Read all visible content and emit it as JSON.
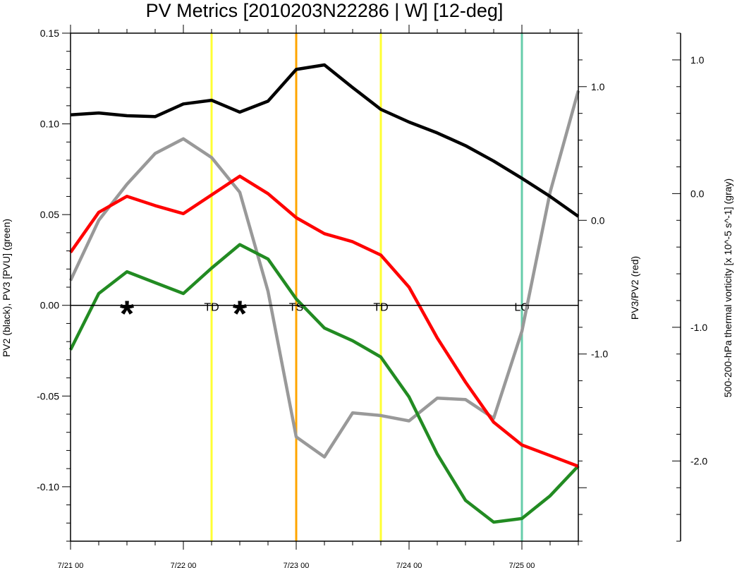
{
  "chart_data": {
    "type": "line",
    "title": "PV Metrics [2010203N22286 | W] [12-deg]",
    "x": [
      "7/21 00",
      "7/21 06",
      "7/21 12",
      "7/21 18",
      "7/22 00",
      "7/22 06",
      "7/22 12",
      "7/22 18",
      "7/23 00",
      "7/23 06",
      "7/23 12",
      "7/23 18",
      "7/24 00",
      "7/24 06",
      "7/24 12",
      "7/24 18",
      "7/25 00",
      "7/25 06",
      "7/25 12"
    ],
    "x_tick_labels": [
      "7/21 00",
      "7/22 00",
      "7/23 00",
      "7/24 00",
      "7/25 00"
    ],
    "xlim": [
      0,
      18
    ],
    "left_axis": {
      "label": "PV2 (black), PV3 [PVU] (green)",
      "ylim": [
        -0.13,
        0.15
      ],
      "ticks": [
        0.15,
        0.1,
        0.05,
        0.0,
        -0.05,
        -0.1
      ],
      "tick_labels": [
        "0.15",
        "0.10",
        "0.05",
        "0.00",
        "-0.05",
        "-0.10"
      ]
    },
    "right_axis_1": {
      "label": "PV3/PV2 (red)",
      "ylim": [
        -2.4,
        1.4
      ],
      "ticks": [
        1.0,
        0.0,
        -1.0
      ],
      "tick_labels": [
        "1.0",
        "0.0",
        "-1.0"
      ]
    },
    "right_axis_2": {
      "label": "500-200-hPa thermal vorticity [x 10^-5 s^-1] (gray)",
      "ylim": [
        -2.6,
        1.2
      ],
      "ticks": [
        1.0,
        0.0,
        -1.0,
        -2.0
      ],
      "tick_labels": [
        "1.0",
        "0.0",
        "-1.0",
        "-2.0"
      ]
    },
    "series": [
      {
        "name": "PV2",
        "axis": "left",
        "color": "#000000",
        "values": [
          0.105,
          0.106,
          0.1045,
          0.104,
          0.111,
          0.113,
          0.1065,
          0.1125,
          0.13,
          0.1325,
          0.12,
          0.108,
          0.101,
          0.095,
          0.088,
          0.0795,
          0.07,
          0.06,
          0.049
        ]
      },
      {
        "name": "PV3",
        "axis": "left",
        "color": "#228b22",
        "values": [
          -0.0245,
          0.0065,
          0.0185,
          0.0125,
          0.0065,
          0.0205,
          0.0335,
          0.0255,
          0.0035,
          -0.0125,
          -0.0195,
          -0.0285,
          -0.0505,
          -0.082,
          -0.1075,
          -0.1195,
          -0.1175,
          -0.105,
          -0.0885
        ]
      },
      {
        "name": "PV3/PV2",
        "axis": "right1",
        "color": "#ff0000",
        "values": [
          -0.24,
          0.06,
          0.18,
          0.11,
          0.05,
          0.19,
          0.33,
          0.2,
          0.02,
          -0.1,
          -0.16,
          -0.26,
          -0.5,
          -0.88,
          -1.21,
          -1.51,
          -1.68,
          -1.76,
          -1.84
        ]
      },
      {
        "name": "thermal vorticity",
        "axis": "right2",
        "color": "#999999",
        "values": [
          -0.65,
          -0.2,
          0.07,
          0.3,
          0.41,
          0.27,
          0.01,
          -0.73,
          -1.82,
          -1.97,
          -1.64,
          -1.66,
          -1.7,
          -1.53,
          -1.54,
          -1.68,
          -1.03,
          0.01,
          0.77
        ]
      }
    ],
    "stage_lines": [
      {
        "x": 5,
        "label": "TD",
        "color": "#ffff33"
      },
      {
        "x": 8,
        "label": "TS",
        "color": "#ffa500"
      },
      {
        "x": 11,
        "label": "TD",
        "color": "#ffff33"
      },
      {
        "x": 16,
        "label": "LO",
        "color": "#66cdaa"
      }
    ],
    "markers": [
      {
        "x": 2,
        "y": 0.0,
        "symbol": "*"
      },
      {
        "x": 6,
        "y": 0.0,
        "symbol": "*"
      }
    ],
    "zero_line": 0.0
  }
}
